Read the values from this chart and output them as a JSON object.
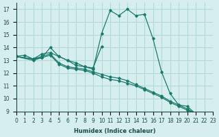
{
  "xlabel": "Humidex (Indice chaleur)",
  "bg_color": "#d6eeee",
  "grid_color": "#b0d8d8",
  "line_color": "#1a7a6a",
  "xlim": [
    0,
    23
  ],
  "ylim": [
    9,
    17.5
  ],
  "xticks": [
    0,
    1,
    2,
    3,
    4,
    5,
    6,
    7,
    8,
    9,
    10,
    11,
    12,
    13,
    14,
    15,
    16,
    17,
    18,
    19,
    20,
    21,
    22,
    23
  ],
  "yticks": [
    9,
    10,
    11,
    12,
    13,
    14,
    15,
    16,
    17
  ],
  "line1_x": [
    0,
    1,
    2,
    3,
    4,
    5,
    6,
    7,
    8,
    9,
    10,
    11,
    12,
    13,
    14,
    15,
    16,
    17,
    18,
    19,
    20,
    21,
    22
  ],
  "line1_y": [
    13.3,
    13.4,
    13.1,
    13.5,
    13.6,
    13.3,
    13.0,
    12.8,
    12.5,
    12.3,
    15.1,
    16.9,
    16.5,
    17.0,
    16.5,
    16.6,
    14.7,
    12.1,
    10.4,
    9.5,
    9.4,
    8.8,
    8.7
  ],
  "line2_x": [
    0,
    2,
    3,
    4,
    5,
    6,
    7,
    8,
    9,
    10,
    11,
    12,
    13,
    14,
    15,
    16,
    17,
    18,
    19,
    20,
    21,
    22,
    23
  ],
  "line2_y": [
    13.3,
    13.1,
    13.3,
    13.5,
    12.8,
    12.5,
    12.4,
    12.3,
    12.1,
    11.9,
    11.7,
    11.6,
    11.4,
    11.1,
    10.8,
    10.5,
    10.2,
    9.8,
    9.5,
    9.2,
    8.8,
    8.7,
    8.65
  ],
  "line3_x": [
    0,
    2,
    3,
    4,
    5,
    6,
    7,
    8,
    9,
    10,
    11,
    12,
    13,
    14,
    15,
    16,
    17,
    18,
    19,
    20,
    21,
    22,
    23
  ],
  "line3_y": [
    13.3,
    13.0,
    13.2,
    13.4,
    12.7,
    12.4,
    12.3,
    12.2,
    12.0,
    11.7,
    11.5,
    11.4,
    11.2,
    11.0,
    10.7,
    10.4,
    10.1,
    9.7,
    9.4,
    9.1,
    8.85,
    8.7,
    8.6
  ],
  "line4_x": [
    0,
    2,
    3,
    4,
    5,
    6,
    7,
    8,
    9,
    10
  ],
  "line4_y": [
    13.3,
    13.1,
    13.2,
    14.0,
    13.3,
    13.0,
    12.6,
    12.5,
    12.4,
    14.1
  ]
}
